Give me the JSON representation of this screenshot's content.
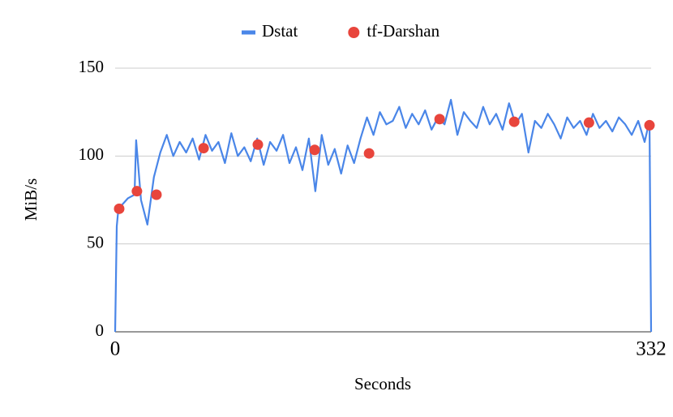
{
  "chart_data": {
    "type": "line",
    "xlabel": "Seconds",
    "ylabel": "MiB/s",
    "xlim": [
      0,
      332
    ],
    "xticks": [
      0,
      332
    ],
    "ylim": [
      0,
      150
    ],
    "yticks": [
      0,
      50,
      100,
      150
    ],
    "grid": true,
    "legend": "top",
    "series": [
      {
        "name": "Dstat",
        "type": "line",
        "color": "#4a86e8",
        "x": [
          0,
          1,
          2,
          4,
          8,
          12,
          13,
          16,
          20,
          24,
          28,
          32,
          36,
          40,
          44,
          48,
          52,
          56,
          60,
          64,
          68,
          72,
          76,
          80,
          84,
          88,
          92,
          96,
          100,
          104,
          108,
          112,
          116,
          120,
          124,
          128,
          132,
          136,
          140,
          144,
          148,
          152,
          156,
          160,
          164,
          168,
          172,
          176,
          180,
          184,
          188,
          192,
          196,
          200,
          204,
          208,
          212,
          216,
          220,
          224,
          228,
          232,
          236,
          240,
          244,
          248,
          252,
          256,
          260,
          264,
          268,
          272,
          276,
          280,
          284,
          288,
          292,
          296,
          300,
          304,
          308,
          312,
          316,
          320,
          324,
          328,
          331,
          332
        ],
        "values": [
          0,
          60,
          70,
          72,
          76,
          78,
          109,
          75,
          61,
          88,
          102,
          112,
          100,
          108,
          102,
          110,
          98,
          112,
          103,
          108,
          96,
          113,
          100,
          105,
          97,
          110,
          95,
          108,
          103,
          112,
          96,
          105,
          92,
          110,
          80,
          112,
          95,
          104,
          90,
          106,
          96,
          110,
          122,
          112,
          125,
          118,
          120,
          128,
          116,
          124,
          118,
          126,
          115,
          122,
          118,
          132,
          112,
          125,
          120,
          116,
          128,
          118,
          124,
          115,
          130,
          118,
          124,
          102,
          120,
          116,
          124,
          118,
          110,
          122,
          116,
          120,
          112,
          124,
          116,
          120,
          114,
          122,
          118,
          112,
          120,
          108,
          120,
          0
        ]
      },
      {
        "name": "tf-Darshan",
        "type": "scatter",
        "color": "#e8453c",
        "x": [
          2.5,
          13.5,
          25.6,
          54.8,
          88.4,
          123.6,
          157.3,
          201,
          247.2,
          293.5,
          331
        ],
        "values": [
          70,
          80,
          78,
          104.5,
          106.5,
          103.5,
          101.5,
          121,
          119.5,
          119,
          117.5
        ]
      }
    ]
  }
}
